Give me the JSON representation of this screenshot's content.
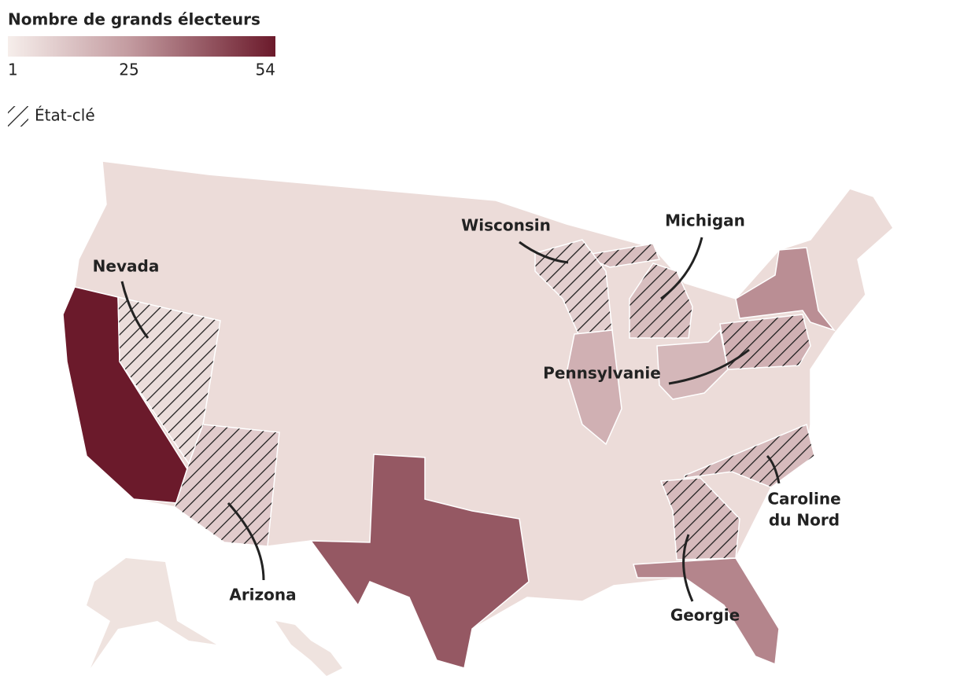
{
  "legend": {
    "title": "Nombre de grands électeurs",
    "ticks": [
      1,
      25,
      54
    ],
    "colors": [
      "#f6eeeb",
      "#c39ba0",
      "#6b1a2b"
    ],
    "swing_label": "État-clé"
  },
  "states": [
    {
      "value": 54,
      "swing": false
    },
    {
      "value": 6,
      "swing": true,
      "label": "Nevada"
    },
    {
      "value": 11,
      "swing": true,
      "label": "Arizona"
    },
    {
      "value": 40,
      "swing": false
    },
    {
      "value": 30,
      "swing": false
    },
    {
      "value": 16,
      "swing": true,
      "label": "Georgie"
    },
    {
      "value": 16,
      "swing": true,
      "label": [
        "Caroline",
        "du Nord"
      ]
    },
    {
      "value": 28,
      "swing": false
    },
    {
      "value": 19,
      "swing": true,
      "label": "Pennsylvanie"
    },
    {
      "value": 17,
      "swing": false
    },
    {
      "value": 15,
      "swing": true,
      "label": "Michigan"
    },
    {
      "value": 10,
      "swing": true,
      "label": "Wisconsin"
    },
    {
      "value": 19,
      "swing": false
    }
  ]
}
